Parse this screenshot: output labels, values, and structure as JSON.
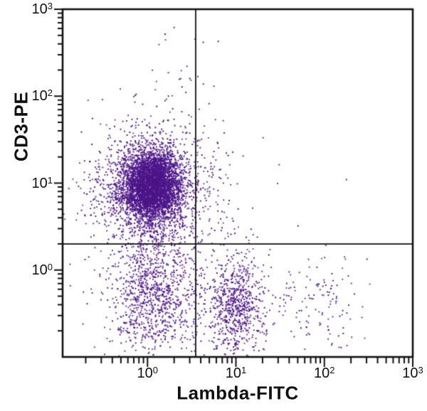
{
  "chart_data": {
    "type": "scatter",
    "subtype": "flow-cytometry-dot-plot",
    "title": "",
    "xlabel": "Lambda-FITC",
    "ylabel": "CD3-PE",
    "x_scale": "log10",
    "y_scale": "log10",
    "x_range_log": [
      -0.96,
      3
    ],
    "y_range_log": [
      -1,
      3
    ],
    "x_ticks": [
      {
        "base": "10",
        "exp": "0",
        "value": 1
      },
      {
        "base": "10",
        "exp": "1",
        "value": 10
      },
      {
        "base": "10",
        "exp": "2",
        "value": 100
      },
      {
        "base": "10",
        "exp": "3",
        "value": 1000
      }
    ],
    "y_ticks": [
      {
        "base": "10",
        "exp": "0",
        "value": 1
      },
      {
        "base": "10",
        "exp": "1",
        "value": 10
      },
      {
        "base": "10",
        "exp": "2",
        "value": 100
      },
      {
        "base": "10",
        "exp": "3",
        "value": 1000
      }
    ],
    "grid": false,
    "legend": false,
    "gates": {
      "x_gate_value": 3.5,
      "x_gate_log": 0.545,
      "y_gate_value": 2.0,
      "y_gate_log": 0.3
    },
    "dot_color": "#4c1488",
    "axis_color": "#111111",
    "populations": [
      {
        "name": "cd3pos-lambdaneg-core",
        "n": 3800,
        "cx": 0.05,
        "cy": 0.97,
        "sx": 0.16,
        "sy": 0.2
      },
      {
        "name": "cd3pos-lambdaneg-halo",
        "n": 1600,
        "cx": 0.02,
        "cy": 0.93,
        "sx": 0.33,
        "sy": 0.34
      },
      {
        "name": "left-bridge",
        "n": 220,
        "cx": 0.08,
        "cy": 0.18,
        "sx": 0.22,
        "sy": 0.25
      },
      {
        "name": "cd3-high-trail",
        "n": 28,
        "cx": 0.42,
        "cy": 2.0,
        "sx": 0.2,
        "sy": 0.33
      },
      {
        "name": "cd3neg-lambdaneg",
        "n": 850,
        "cx": 0.06,
        "cy": -0.38,
        "sx": 0.26,
        "sy": 0.3
      },
      {
        "name": "cd3neg-lambdapos",
        "n": 780,
        "cx": 1.0,
        "cy": -0.42,
        "sx": 0.17,
        "sy": 0.3
      },
      {
        "name": "lambda-bright-sparse",
        "n": 130,
        "cx": 1.92,
        "cy": -0.33,
        "sx": 0.27,
        "sy": 0.27
      },
      {
        "name": "upper-right-sparse",
        "n": 48,
        "cx": 0.72,
        "cy": 0.95,
        "sx": 0.25,
        "sy": 0.38
      }
    ],
    "noise_points": {
      "n": 45,
      "x_min": -0.92,
      "x_max": 1.7,
      "y_min": -0.95,
      "y_max": 2.4
    },
    "outlier_points_log": [
      [
        2.25,
        1.04
      ],
      [
        0.63,
        2.62
      ],
      [
        0.8,
        2.63
      ]
    ]
  }
}
